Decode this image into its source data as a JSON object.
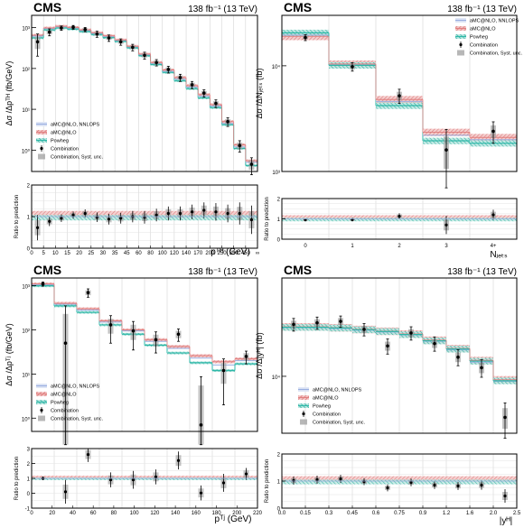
{
  "colors": {
    "amc_nnlops": "#99aee0",
    "amc_nlo": "#e07f7f",
    "powheg": "#2db8a8",
    "data": "#000000",
    "syst": "#999999",
    "grid": "#cccccc",
    "hatch_amc": "#d66b6b",
    "hatch_pow": "#22a898"
  },
  "chart_data": [
    {
      "panel": "top-left",
      "type": "line",
      "cms_label": "CMS",
      "lumi_label": "138 fb⁻¹ (13 TeV)",
      "ylabel": "Δσ /Δpᵀᴴ (fb/GeV)",
      "xlabel": "pᵀᴴ (GeV)",
      "ratio_ylabel": "Ratio to prediction",
      "yscale": "log",
      "ylim": [
        0.3,
        2000
      ],
      "ratio_ylim": [
        0,
        2
      ],
      "yticks": [
        {
          "v": 1000,
          "l": "10³"
        },
        {
          "v": 100,
          "l": "10²"
        },
        {
          "v": 10,
          "l": "10¹"
        },
        {
          "v": 1,
          "l": "10⁰"
        }
      ],
      "ratio_yticks": [
        0,
        1,
        2
      ],
      "xtick_labels": [
        "0",
        "5",
        "10",
        "15",
        "20",
        "25",
        "30",
        "35",
        "45",
        "60",
        "80",
        "100",
        "120",
        "140",
        "170",
        "200",
        "250",
        "350",
        "450",
        "∞"
      ],
      "bin_edges": [
        0,
        5,
        10,
        15,
        20,
        25,
        30,
        35,
        45,
        60,
        80,
        100,
        120,
        140,
        170,
        200,
        250,
        350,
        450,
        1000
      ],
      "values": [
        450,
        780,
        980,
        1020,
        900,
        700,
        560,
        450,
        330,
        210,
        140,
        95,
        60,
        40,
        25,
        14,
        5.0,
        1.3,
        0.45
      ],
      "errors": [
        250,
        150,
        120,
        110,
        110,
        120,
        100,
        80,
        60,
        40,
        25,
        18,
        12,
        8,
        5,
        3,
        1.2,
        0.4,
        0.2
      ],
      "pred_amc_nnlops": [
        620,
        950,
        1050,
        980,
        850,
        720,
        600,
        480,
        330,
        215,
        130,
        85,
        55,
        35,
        21,
        12,
        4.5,
        1.2,
        0.5
      ],
      "pred_amc_nlo": [
        650,
        980,
        1080,
        1010,
        880,
        750,
        630,
        500,
        350,
        225,
        140,
        92,
        60,
        38,
        23,
        13,
        5.0,
        1.35,
        0.55
      ],
      "pred_powheg": [
        560,
        880,
        980,
        920,
        800,
        680,
        570,
        460,
        320,
        205,
        125,
        80,
        50,
        32,
        19,
        11,
        4.2,
        1.1,
        0.42
      ],
      "ratio_values": [
        0.65,
        0.85,
        0.95,
        1.05,
        1.1,
        0.98,
        0.92,
        0.95,
        1.0,
        0.98,
        1.05,
        1.1,
        1.1,
        1.15,
        1.2,
        1.15,
        1.1,
        1.1,
        0.9
      ],
      "ratio_errors": [
        0.4,
        0.15,
        0.12,
        0.11,
        0.13,
        0.15,
        0.17,
        0.17,
        0.18,
        0.2,
        0.2,
        0.22,
        0.22,
        0.23,
        0.25,
        0.28,
        0.28,
        0.35,
        0.45
      ],
      "legend": [
        "aMC@NLO, NNLOPS",
        "aMC@NLO",
        "Powheg",
        "Combination",
        "Combination, Syst. unc."
      ]
    },
    {
      "panel": "top-right",
      "type": "line",
      "cms_label": "CMS",
      "lumi_label": "138 fb⁻¹ (13 TeV)",
      "ylabel": "Δσ /ΔNⱼₑₜₛ (fb)",
      "xlabel": "Nⱼₑₜₛ",
      "ratio_ylabel": "Ratio to prediction",
      "yscale": "log",
      "ylim": [
        1000,
        30000
      ],
      "ratio_ylim": [
        0,
        2
      ],
      "yticks": [
        {
          "v": 10000,
          "l": "10⁴"
        },
        {
          "v": 1000,
          "l": "10³"
        }
      ],
      "ratio_yticks": [
        0,
        1,
        2
      ],
      "categories": [
        "0",
        "1",
        "2",
        "3",
        "4+"
      ],
      "values": [
        18500,
        9800,
        5200,
        1600,
        2400
      ],
      "errors": [
        1200,
        900,
        800,
        900,
        550
      ],
      "pred_amc_nnlops": [
        19500,
        10200,
        4600,
        2200,
        2000
      ],
      "pred_amc_nlo": [
        19000,
        10400,
        4800,
        2350,
        2100
      ],
      "pred_powheg": [
        20500,
        10100,
        4200,
        1950,
        1850
      ],
      "ratio_values": [
        0.95,
        0.96,
        1.13,
        0.7,
        1.2
      ],
      "ratio_errors": [
        0.05,
        0.08,
        0.15,
        0.45,
        0.25
      ],
      "legend": [
        "aMC@NLO, NNLOPS",
        "aMC@NLO",
        "Powheg",
        "Combination",
        "Combination, Syst. unc."
      ]
    },
    {
      "panel": "bottom-left",
      "type": "line",
      "cms_label": "CMS",
      "lumi_label": "138 fb⁻¹ (13 TeV)",
      "ylabel": "Δσ /Δpᵀʲ (fb/GeV)",
      "xlabel": "pᵀʲ (GeV)",
      "ratio_ylabel": "Ratio to prediction",
      "yscale": "log",
      "ylim": [
        0.5,
        1500
      ],
      "ratio_ylim": [
        -1,
        3
      ],
      "yticks": [
        {
          "v": 1000,
          "l": "10³"
        },
        {
          "v": 100,
          "l": "10²"
        },
        {
          "v": 10,
          "l": "10¹"
        },
        {
          "v": 1,
          "l": "10⁰"
        }
      ],
      "ratio_yticks": [
        -1,
        0,
        1,
        2,
        3
      ],
      "xtick_labels": [
        "0",
        "20",
        "40",
        "60",
        "80",
        "100",
        "120",
        "140",
        "160",
        "180",
        "200",
        "220"
      ],
      "bin_edges": [
        0,
        30,
        45,
        70,
        90,
        120,
        150,
        170,
        200,
        220,
        240
      ],
      "values": [
        1100,
        50,
        700,
        130,
        95,
        60,
        80,
        0.7,
        12,
        25
      ],
      "errors": [
        120,
        300,
        150,
        80,
        60,
        30,
        25,
        8,
        10,
        8
      ],
      "pred_amc_nnlops": [
        1050,
        380,
        280,
        150,
        95,
        55,
        38,
        23,
        16,
        20
      ],
      "pred_amc_nlo": [
        1100,
        400,
        300,
        160,
        100,
        60,
        42,
        26,
        19,
        22
      ],
      "pred_powheg": [
        1000,
        350,
        250,
        130,
        80,
        45,
        30,
        18,
        12,
        17
      ],
      "ratio_values": [
        1.0,
        0.1,
        2.6,
        0.9,
        0.9,
        1.1,
        2.2,
        0.02,
        0.7,
        1.3
      ],
      "ratio_errors": [
        0.12,
        0.8,
        0.5,
        0.5,
        0.6,
        0.5,
        0.6,
        0.5,
        0.6,
        0.4
      ],
      "legend": [
        "aMC@NLO, NNLOPS",
        "aMC@NLO",
        "Powheg",
        "Combination",
        "Combination, Syst. unc."
      ]
    },
    {
      "panel": "bottom-right",
      "type": "line",
      "cms_label": "CMS",
      "lumi_label": "138 fb⁻¹ (13 TeV)",
      "ylabel": "Δσ /Δ|yᴴ| (fb)",
      "xlabel": "|yᴴ|",
      "ratio_ylabel": "Ratio to prediction",
      "yscale": "log",
      "ylim": [
        3000,
        80000
      ],
      "ratio_ylim": [
        0,
        2
      ],
      "yticks": [
        {
          "v": 10000,
          "l": "10⁴"
        }
      ],
      "ratio_yticks": [
        0,
        1,
        2
      ],
      "xtick_labels": [
        "0.0",
        "0.15",
        "0.3",
        "0.45",
        "0.6",
        "0.75",
        "0.9",
        "1.2",
        "1.6",
        "2.0",
        "2.5"
      ],
      "bin_edges": [
        0.0,
        0.15,
        0.3,
        0.45,
        0.6,
        0.75,
        0.9,
        1.2,
        1.6,
        2.0,
        2.5
      ],
      "values": [
        30000,
        31000,
        32000,
        27000,
        19000,
        25000,
        20000,
        15000,
        12000,
        4200
      ],
      "errors": [
        4000,
        4000,
        3800,
        3500,
        3000,
        3500,
        3000,
        2500,
        2200,
        1500
      ],
      "pred_amc_nnlops": [
        28000,
        28000,
        27500,
        26500,
        25500,
        24000,
        21000,
        17500,
        13500,
        9000
      ],
      "pred_amc_nlo": [
        28500,
        28500,
        28000,
        27000,
        26000,
        24500,
        21500,
        18000,
        14000,
        9300
      ],
      "pred_powheg": [
        28200,
        28200,
        27800,
        26800,
        25800,
        24200,
        21200,
        17800,
        13800,
        9100
      ],
      "ratio_values": [
        1.02,
        1.05,
        1.08,
        0.98,
        0.75,
        0.95,
        0.85,
        0.82,
        0.85,
        0.45
      ],
      "ratio_errors": [
        0.15,
        0.15,
        0.15,
        0.13,
        0.13,
        0.14,
        0.14,
        0.15,
        0.17,
        0.25
      ],
      "legend": [
        "aMC@NLO, NNLOPS",
        "aMC@NLO",
        "Powheg",
        "Combination",
        "Combination, Syst. unc."
      ]
    }
  ]
}
